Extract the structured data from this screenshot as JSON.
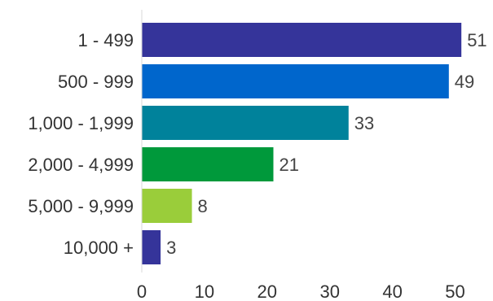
{
  "chart_data": {
    "type": "bar",
    "orientation": "horizontal",
    "categories": [
      "1 - 499",
      "500 - 999",
      "1,000 - 1,999",
      "2,000 - 4,999",
      "5,000 - 9,999",
      "10,000 +"
    ],
    "values": [
      51,
      49,
      33,
      21,
      8,
      3
    ],
    "colors": [
      "#35349a",
      "#0066cc",
      "#00829b",
      "#00993b",
      "#9acd3a",
      "#35349a"
    ],
    "xticks": [
      0,
      10,
      20,
      30,
      40,
      50
    ],
    "xlim": [
      0,
      55
    ],
    "title": "",
    "xlabel": "",
    "ylabel": "",
    "grid": false,
    "legend": "none",
    "data_labels": true
  }
}
